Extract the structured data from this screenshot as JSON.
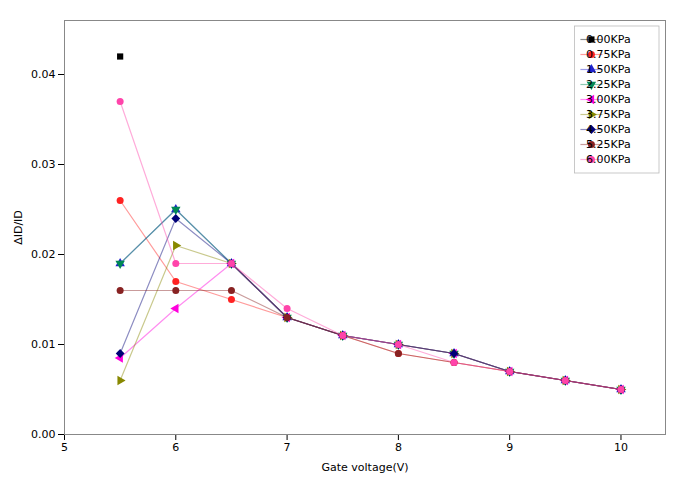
{
  "chart_data": {
    "type": "line",
    "xlabel": "Gate voltage(V)",
    "ylabel": "ΔID/ID",
    "x": [
      5.5,
      6.0,
      6.5,
      7.0,
      7.5,
      8.0,
      8.5,
      9.0,
      9.5,
      10.0
    ],
    "series": [
      {
        "name": "0.00KPa",
        "color": "#000000",
        "marker": "square",
        "values": [
          0.042,
          null,
          null,
          null,
          null,
          null,
          null,
          null,
          null,
          null
        ]
      },
      {
        "name": "0.75KPa",
        "color": "#ff2222",
        "marker": "circle",
        "values": [
          0.026,
          0.017,
          0.015,
          0.013,
          0.011,
          0.009,
          0.008,
          0.007,
          0.006,
          0.005
        ]
      },
      {
        "name": "1.50KPa",
        "color": "#2222cc",
        "marker": "triangle-up",
        "values": [
          0.019,
          0.025,
          0.019,
          0.013,
          0.011,
          0.01,
          0.009,
          0.007,
          0.006,
          0.005
        ]
      },
      {
        "name": "2.25KPa",
        "color": "#008855",
        "marker": "triangle-down",
        "values": [
          0.019,
          0.025,
          0.019,
          0.013,
          0.011,
          0.01,
          0.009,
          0.007,
          0.006,
          0.005
        ]
      },
      {
        "name": "3.00KPa",
        "color": "#ff00dd",
        "marker": "triangle-left",
        "values": [
          0.0085,
          0.014,
          0.019,
          0.013,
          0.011,
          0.01,
          0.009,
          0.007,
          0.006,
          0.005
        ]
      },
      {
        "name": "3.75KPa",
        "color": "#888800",
        "marker": "triangle-right",
        "values": [
          0.006,
          0.021,
          0.019,
          0.013,
          0.011,
          0.01,
          0.009,
          0.007,
          0.006,
          0.005
        ]
      },
      {
        "name": "4.50KPa",
        "color": "#000077",
        "marker": "diamond",
        "values": [
          0.009,
          0.024,
          0.019,
          0.013,
          0.011,
          0.01,
          0.009,
          0.007,
          0.006,
          0.005
        ]
      },
      {
        "name": "5.25KPa",
        "color": "#882222",
        "marker": "circle",
        "values": [
          0.016,
          0.016,
          0.016,
          0.013,
          0.011,
          0.009,
          0.008,
          0.007,
          0.006,
          0.005
        ]
      },
      {
        "name": "6.00KPa",
        "color": "#ff44aa",
        "marker": "circle",
        "values": [
          0.037,
          0.019,
          0.019,
          0.014,
          0.011,
          0.01,
          0.008,
          0.007,
          0.006,
          0.005
        ]
      }
    ],
    "xlim": [
      5.0,
      10.4
    ],
    "ylim": [
      0.0,
      0.046
    ],
    "xticks": [
      5,
      6,
      7,
      8,
      9,
      10
    ],
    "yticks": [
      {
        "value": 0.0,
        "label": "0.00"
      },
      0.01,
      0.02,
      0.03,
      0.04
    ],
    "grid": false,
    "legend": "upper right"
  }
}
